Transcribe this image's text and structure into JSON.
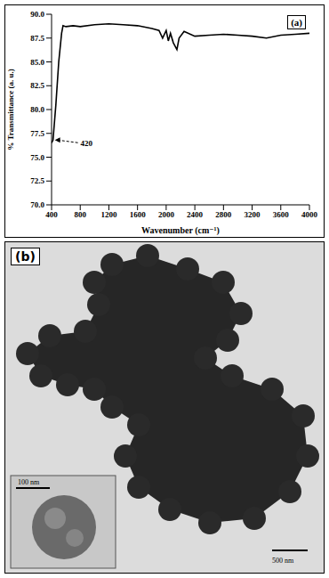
{
  "chart_data": {
    "type": "line",
    "panel_label": "(a)",
    "x_label": "Wavenumber (cm⁻¹)",
    "y_label": "% Transmittance (a. u.)",
    "x": [
      400,
      420,
      460,
      500,
      540,
      560,
      600,
      700,
      800,
      1000,
      1200,
      1400,
      1600,
      1800,
      1900,
      1950,
      2000,
      2030,
      2060,
      2100,
      2150,
      2180,
      2250,
      2400,
      2600,
      2800,
      3000,
      3200,
      3400,
      3600,
      3800,
      4000
    ],
    "values": [
      76.5,
      76.8,
      80.5,
      85.0,
      88.0,
      88.8,
      88.7,
      88.8,
      88.7,
      88.9,
      89.0,
      88.9,
      88.8,
      88.5,
      88.3,
      87.5,
      88.3,
      87.2,
      88.0,
      87.0,
      86.3,
      87.5,
      88.2,
      87.7,
      87.8,
      87.9,
      87.8,
      87.7,
      87.5,
      87.8,
      87.9,
      88.0
    ],
    "color": "#000000",
    "xlim": [
      400,
      4000
    ],
    "xticks": [
      400,
      800,
      1200,
      1600,
      2000,
      2400,
      2800,
      3200,
      3600,
      4000
    ],
    "ylim": [
      70,
      90
    ],
    "yticks": [
      {
        "value": 70,
        "label": "70.0"
      },
      {
        "value": 72.5,
        "label": "72.5"
      },
      {
        "value": 75,
        "label": "75.0"
      },
      {
        "value": 77.5,
        "label": "77.5"
      },
      {
        "value": 80,
        "label": "80.0"
      },
      {
        "value": 82.5,
        "label": "82.5"
      },
      {
        "value": 85,
        "label": "85.0"
      },
      {
        "value": 87.5,
        "label": "87.5"
      },
      {
        "value": 90,
        "label": "90.0"
      }
    ],
    "grid": false,
    "annotations": [
      {
        "text": "420",
        "x": 420
      }
    ]
  },
  "image_panel": {
    "panel_label": "(b)",
    "scale_bar": "500 nm",
    "inset_scale_bar": "100 nm"
  }
}
